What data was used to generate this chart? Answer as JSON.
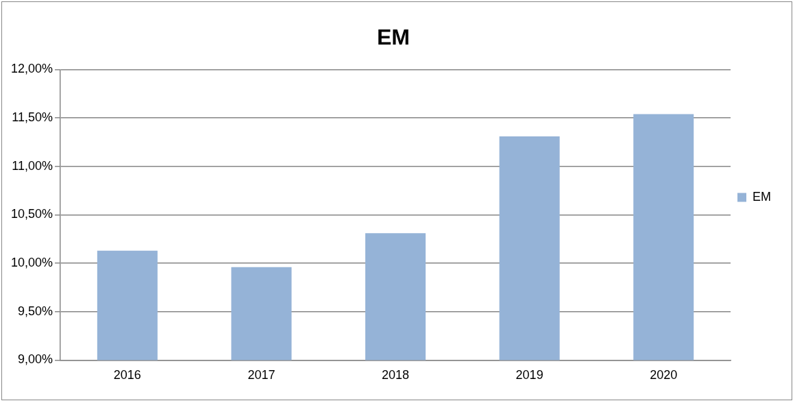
{
  "chart_data": {
    "type": "bar",
    "title": "EM",
    "categories": [
      "2016",
      "2017",
      "2018",
      "2019",
      "2020"
    ],
    "series": [
      {
        "name": "EM",
        "color": "#95b3d7",
        "values": [
          10.13,
          9.96,
          10.31,
          11.31,
          11.54
        ]
      }
    ],
    "ylim": [
      9,
      12
    ],
    "yticks": [
      {
        "value": 9,
        "label": "9,00%"
      },
      {
        "value": 9.5,
        "label": "9,50%"
      },
      {
        "value": 10,
        "label": "10,00%"
      },
      {
        "value": 10.5,
        "label": "10,50%"
      },
      {
        "value": 11,
        "label": "11,00%"
      },
      {
        "value": 11.5,
        "label": "11,50%"
      },
      {
        "value": 12,
        "label": "12,00%"
      }
    ],
    "grid": "y",
    "legend": "right"
  }
}
